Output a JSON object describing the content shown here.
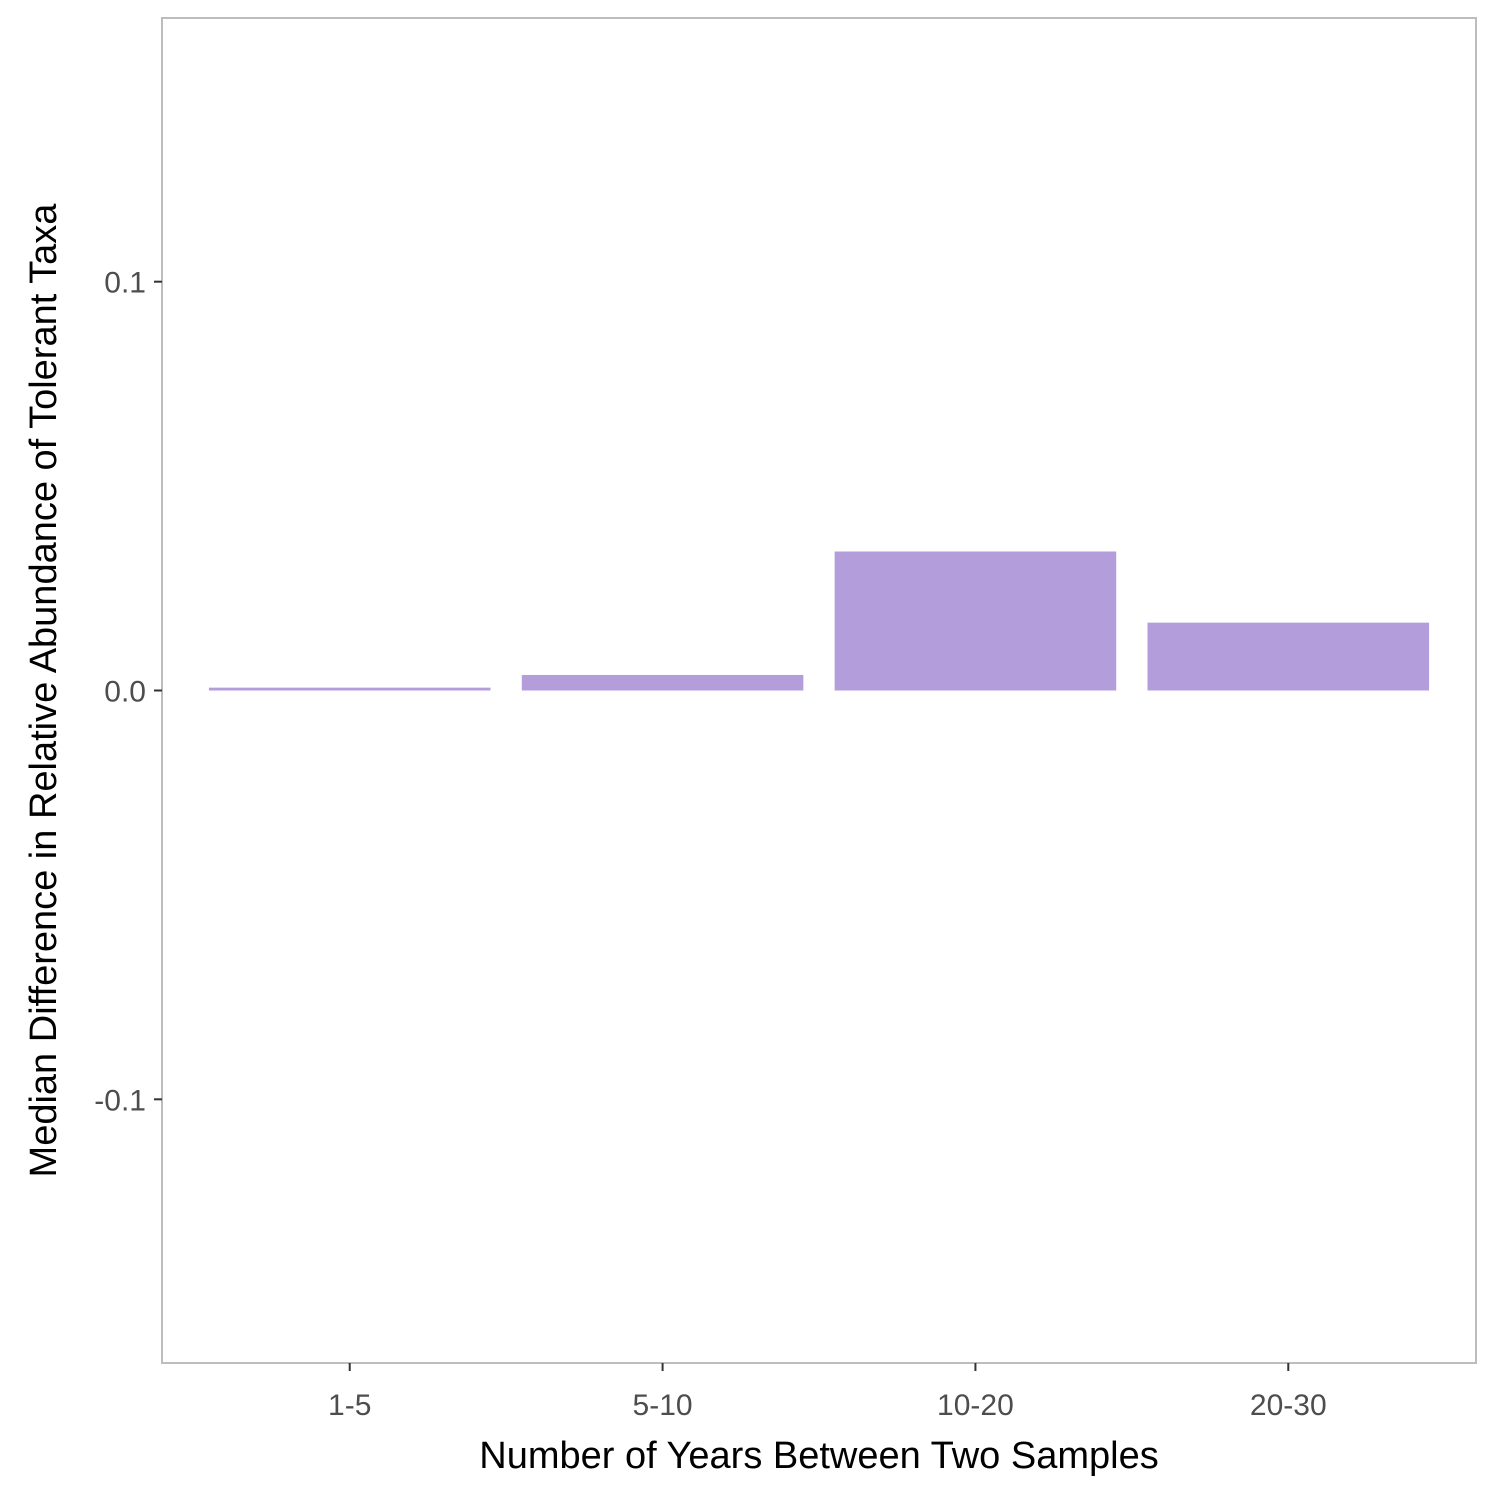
{
  "chart_data": {
    "type": "bar",
    "title": "",
    "xlabel": "Number of Years Between Two Samples",
    "ylabel": "Median Difference in Relative Abundance of Tolerant Taxa",
    "categories": [
      "1-5",
      "5-10",
      "10-20",
      "20-30"
    ],
    "values": [
      0.0007,
      0.0038,
      0.034,
      0.0166
    ],
    "ylim": [
      -0.1645,
      0.1645
    ],
    "yticks": [
      -0.1,
      0.0,
      0.1
    ],
    "ytick_labels": [
      "-0.1",
      "0.0",
      "0.1"
    ],
    "grid": "white major and minor lines (theme_bw style, invisible on white)",
    "legend": "none",
    "colors": {
      "bar": "#b39ddb",
      "panel_border": "#bdbdbd",
      "tick": "#333333",
      "tick_label": "#4d4d4d",
      "axis_title": "#000000"
    }
  }
}
